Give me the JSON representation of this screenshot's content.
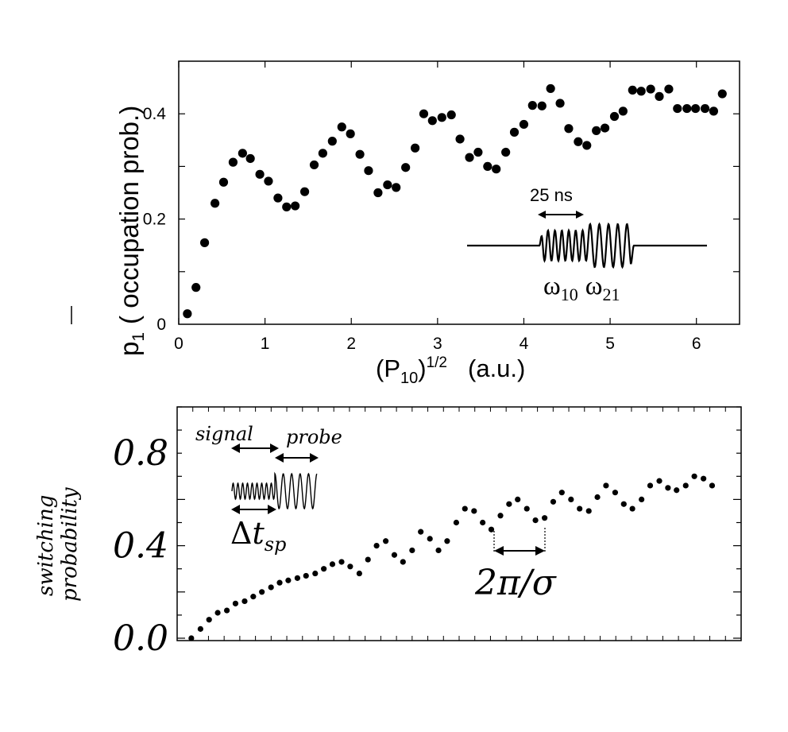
{
  "chart_data": [
    {
      "type": "scatter",
      "xlabel_base": "(P",
      "xlabel_sub": "10",
      "xlabel_close": ")",
      "xlabel_sup": "1/2",
      "xlabel_unit": "(a.u.)",
      "ylabel_base": "p",
      "ylabel_sub": "1",
      "ylabel_rest": "( occupation prob.)",
      "xlim": [
        0,
        6.5
      ],
      "ylim": [
        0,
        0.5
      ],
      "x_ticks": [
        0,
        1,
        2,
        3,
        4,
        5,
        6
      ],
      "x_tick_labels": [
        "0",
        "1",
        "2",
        "3",
        "4",
        "5",
        "6"
      ],
      "y_ticks": [
        0,
        0.2,
        0.4
      ],
      "y_tick_labels": [
        "0",
        "0.2",
        "0.4"
      ],
      "x": [
        0.1,
        0.2,
        0.3,
        0.42,
        0.52,
        0.63,
        0.74,
        0.83,
        0.94,
        1.04,
        1.15,
        1.25,
        1.35,
        1.46,
        1.57,
        1.67,
        1.78,
        1.89,
        1.99,
        2.1,
        2.2,
        2.31,
        2.42,
        2.52,
        2.63,
        2.74,
        2.84,
        2.94,
        3.05,
        3.16,
        3.26,
        3.37,
        3.47,
        3.58,
        3.68,
        3.79,
        3.89,
        4.0,
        4.1,
        4.21,
        4.31,
        4.42,
        4.52,
        4.63,
        4.73,
        4.84,
        4.94,
        5.05,
        5.15,
        5.26,
        5.36,
        5.47,
        5.57,
        5.68,
        5.78,
        5.89,
        5.99,
        6.1,
        6.2,
        6.3
      ],
      "y": [
        0.02,
        0.07,
        0.155,
        0.23,
        0.27,
        0.308,
        0.325,
        0.315,
        0.285,
        0.272,
        0.24,
        0.223,
        0.225,
        0.252,
        0.303,
        0.325,
        0.348,
        0.375,
        0.362,
        0.323,
        0.292,
        0.25,
        0.265,
        0.26,
        0.298,
        0.335,
        0.4,
        0.387,
        0.393,
        0.398,
        0.352,
        0.317,
        0.327,
        0.3,
        0.295,
        0.327,
        0.365,
        0.38,
        0.416,
        0.415,
        0.448,
        0.42,
        0.372,
        0.347,
        0.34,
        0.368,
        0.373,
        0.395,
        0.405,
        0.445,
        0.443,
        0.447,
        0.433,
        0.447,
        0.41,
        0.41,
        0.41,
        0.41,
        0.405,
        0.438
      ],
      "annotation_duration": "25 ns",
      "annotation_omega10": "ω",
      "annotation_omega10_sub": "10",
      "annotation_omega21": "ω",
      "annotation_omega21_sub": "21"
    },
    {
      "type": "scatter",
      "ylabel_line1": "switching",
      "ylabel_line2": "probability",
      "ylim": [
        0,
        1.0
      ],
      "y_ticks": [
        0.0,
        0.4,
        0.8
      ],
      "y_tick_labels": [
        "0.0",
        "0.4",
        "0.8"
      ],
      "xlim": [
        0,
        1
      ],
      "x": [
        0.016,
        0.033,
        0.049,
        0.065,
        0.082,
        0.098,
        0.115,
        0.131,
        0.147,
        0.164,
        0.18,
        0.196,
        0.213,
        0.229,
        0.246,
        0.262,
        0.278,
        0.295,
        0.311,
        0.328,
        0.344,
        0.36,
        0.377,
        0.393,
        0.409,
        0.426,
        0.442,
        0.459,
        0.475,
        0.491,
        0.508,
        0.524,
        0.541,
        0.557,
        0.573,
        0.59,
        0.606,
        0.622,
        0.639,
        0.655,
        0.672,
        0.688,
        0.704,
        0.721,
        0.737,
        0.754,
        0.77,
        0.786,
        0.803,
        0.819,
        0.835,
        0.852,
        0.868,
        0.885,
        0.901,
        0.917,
        0.934,
        0.95,
        0.967,
        0.983
      ],
      "y": [
        0.0,
        0.04,
        0.08,
        0.11,
        0.12,
        0.15,
        0.16,
        0.18,
        0.2,
        0.22,
        0.24,
        0.25,
        0.26,
        0.27,
        0.28,
        0.3,
        0.32,
        0.33,
        0.31,
        0.28,
        0.34,
        0.4,
        0.42,
        0.36,
        0.33,
        0.38,
        0.46,
        0.43,
        0.38,
        0.42,
        0.5,
        0.56,
        0.55,
        0.5,
        0.47,
        0.53,
        0.58,
        0.6,
        0.56,
        0.51,
        0.52,
        0.59,
        0.63,
        0.6,
        0.56,
        0.55,
        0.61,
        0.66,
        0.63,
        0.58,
        0.56,
        0.6,
        0.66,
        0.68,
        0.65,
        0.64,
        0.66,
        0.7,
        0.69,
        0.66
      ],
      "inset_signal": "signal",
      "inset_probe": "probe",
      "inset_delta": "Δ",
      "inset_t": "t",
      "inset_sp": "sp",
      "period_label": "2π/σ"
    }
  ]
}
